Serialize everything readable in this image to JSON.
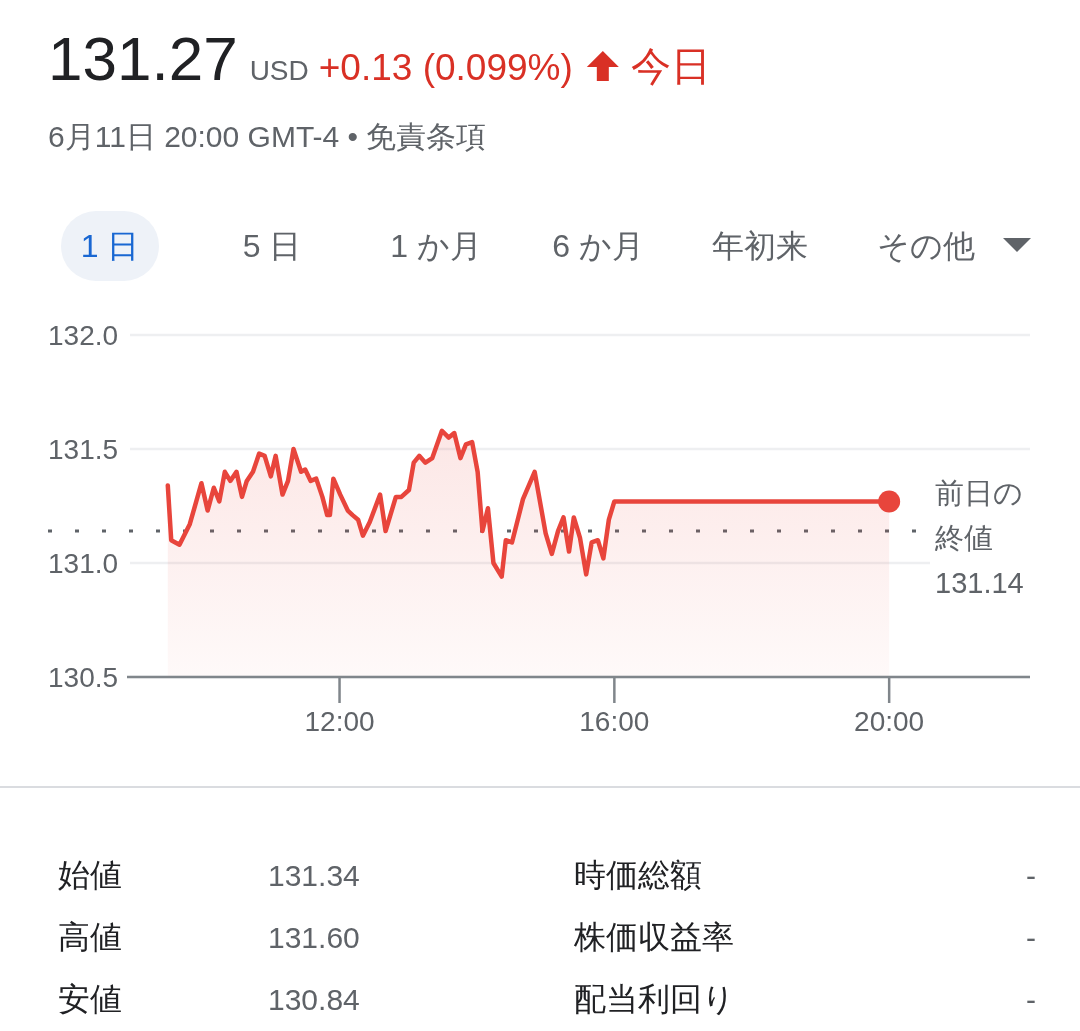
{
  "chart_data": {
    "type": "area",
    "title": "131.27",
    "subtitle": "6月11日 20:00 GMT-4 • 免責条項",
    "x": [
      9.5,
      9.55,
      9.67,
      9.82,
      9.99,
      10.08,
      10.17,
      10.25,
      10.33,
      10.41,
      10.5,
      10.58,
      10.65,
      10.74,
      10.83,
      10.91,
      11.0,
      11.07,
      11.17,
      11.25,
      11.33,
      11.44,
      11.5,
      11.58,
      11.66,
      11.75,
      11.82,
      11.86,
      11.91,
      12.01,
      12.12,
      12.19,
      12.27,
      12.34,
      12.44,
      12.59,
      12.67,
      12.82,
      12.9,
      13.01,
      13.08,
      13.16,
      13.25,
      13.35,
      13.49,
      13.59,
      13.67,
      13.76,
      13.84,
      13.93,
      14.01,
      14.08,
      14.16,
      14.24,
      14.36,
      14.42,
      14.51,
      14.67,
      14.84,
      15.0,
      15.09,
      15.18,
      15.26,
      15.34,
      15.41,
      15.5,
      15.59,
      15.67,
      15.76,
      15.84,
      15.92,
      16.0,
      20.0
    ],
    "series": [
      {
        "color": "#e8453c",
        "values": [
          131.34,
          131.1,
          131.08,
          131.17,
          131.35,
          131.23,
          131.33,
          131.27,
          131.4,
          131.36,
          131.4,
          131.29,
          131.36,
          131.4,
          131.48,
          131.47,
          131.38,
          131.47,
          131.3,
          131.36,
          131.5,
          131.4,
          131.41,
          131.36,
          131.37,
          131.29,
          131.21,
          131.21,
          131.37,
          131.3,
          131.23,
          131.21,
          131.19,
          131.12,
          131.18,
          131.3,
          131.14,
          131.29,
          131.29,
          131.32,
          131.44,
          131.47,
          131.44,
          131.46,
          131.58,
          131.55,
          131.57,
          131.46,
          131.52,
          131.53,
          131.4,
          131.14,
          131.24,
          131.0,
          130.94,
          131.1,
          131.09,
          131.28,
          131.4,
          131.13,
          131.04,
          131.14,
          131.2,
          131.05,
          131.2,
          131.11,
          130.95,
          131.09,
          131.1,
          131.02,
          131.19,
          131.27,
          131.27
        ]
      },
      {
        "type": "scatter",
        "x": [
          20.0
        ],
        "values": [
          131.27
        ],
        "color": "#e8453c",
        "marker": "circle"
      }
    ],
    "xlim": [
      8.95,
      22.05
    ],
    "xticks": [
      {
        "value": 12,
        "label": "12:00"
      },
      {
        "value": 16,
        "label": "16:00"
      },
      {
        "value": 20,
        "label": "20:00"
      }
    ],
    "ylim": [
      130.5,
      132.0
    ],
    "yticks": [
      130.5,
      {
        "value": 131,
        "label": "131.0"
      },
      131.5,
      {
        "value": 132,
        "label": "132.0"
      }
    ],
    "grid": "y",
    "ref_lines": [
      {
        "axis": "y",
        "value": 131.14,
        "label": "前日の終値 131.14",
        "line_style": "dotted",
        "color": "#5f6368"
      }
    ],
    "annotations": [
      "USD",
      "+0.13 (0.099%)",
      "今日",
      "1 日",
      "5 日",
      "1 か月",
      "6 か月",
      "年初来",
      "その他",
      "始値",
      "131.34",
      "時価総額",
      "-",
      "高値",
      "131.60",
      "株価収益率",
      "-",
      "安値",
      "130.84",
      "配当利回り",
      "-"
    ]
  }
}
